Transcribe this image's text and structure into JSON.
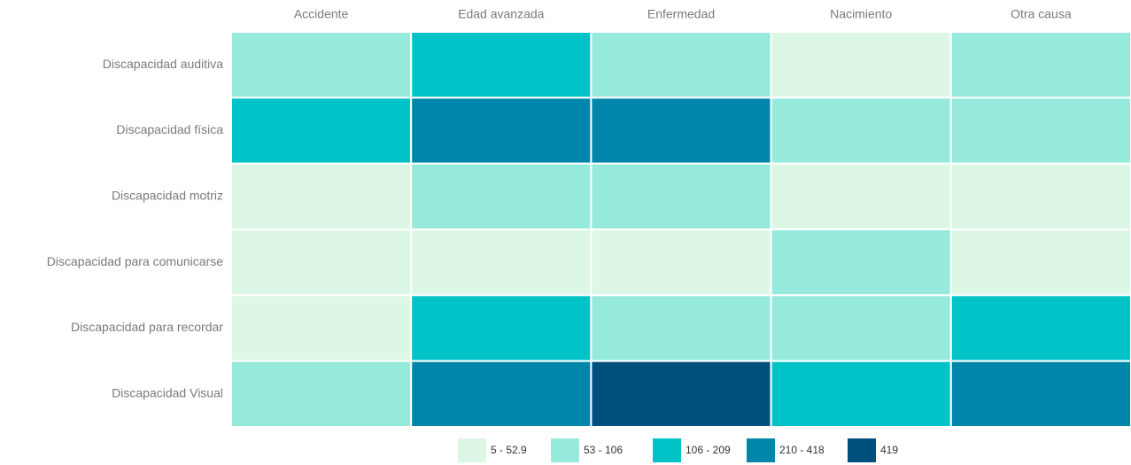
{
  "chart_data": {
    "type": "heatmap",
    "x": [
      "Accidente",
      "Edad avanzada",
      "Enfermedad",
      "Nacimiento",
      "Otra causa"
    ],
    "y": [
      "Discapacidad auditiva",
      "Discapacidad física",
      "Discapacidad motriz",
      "Discapacidad para comunicarse",
      "Discapacidad para recordar",
      "Discapacidad Visual"
    ],
    "values": [
      [
        80,
        150,
        80,
        30,
        80
      ],
      [
        150,
        300,
        300,
        80,
        80
      ],
      [
        30,
        80,
        80,
        30,
        30
      ],
      [
        30,
        30,
        30,
        80,
        30
      ],
      [
        30,
        150,
        80,
        80,
        150
      ],
      [
        80,
        300,
        419,
        150,
        300
      ]
    ],
    "legend": [
      {
        "label": "5 - 52.9",
        "min": 5,
        "max": 52.9,
        "color": "#dcf7e6"
      },
      {
        "label": "53 - 106",
        "min": 53,
        "max": 106,
        "color": "#96eadc"
      },
      {
        "label": "106 - 209",
        "min": 106,
        "max": 209,
        "color": "#00c3c8"
      },
      {
        "label": "210 - 418",
        "min": 210,
        "max": 418,
        "color": "#0086aa"
      },
      {
        "label": "419",
        "min": 419,
        "max": 419,
        "color": "#00507e"
      }
    ]
  }
}
